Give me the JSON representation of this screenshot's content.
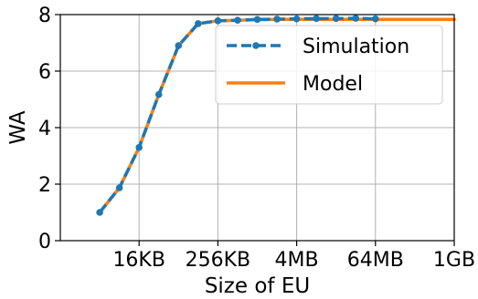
{
  "chart_data": {
    "type": "line",
    "title": "",
    "xlabel": "Size of EU",
    "ylabel": "WA",
    "x_scale": "log2",
    "x_ticks": [
      {
        "value": 16384,
        "label": "16KB"
      },
      {
        "value": 262144,
        "label": "256KB"
      },
      {
        "value": 4194304,
        "label": "4MB"
      },
      {
        "value": 67108864,
        "label": "64MB"
      },
      {
        "value": 1073741824,
        "label": "1GB"
      }
    ],
    "xlim": [
      1024,
      1073741824
    ],
    "ylim": [
      0,
      8
    ],
    "y_ticks": [
      0,
      2,
      4,
      6,
      8
    ],
    "grid": true,
    "legend_position": "top-right",
    "series": [
      {
        "name": "Simulation",
        "style": "dashed-with-markers",
        "color": "#1f77b4",
        "x": [
          4096,
          8192,
          16384,
          32768,
          65536,
          131072,
          262144,
          524288,
          1048576,
          2097152,
          4194304,
          8388608,
          16777216,
          33554432,
          67108864
        ],
        "y": [
          1.0,
          1.87,
          3.3,
          5.17,
          6.9,
          7.68,
          7.78,
          7.8,
          7.83,
          7.84,
          7.85,
          7.86,
          7.86,
          7.87,
          7.85
        ]
      },
      {
        "name": "Model",
        "style": "solid",
        "color": "#ff7f0e",
        "x": [
          4096,
          8192,
          16384,
          32768,
          65536,
          131072,
          262144,
          524288,
          1048576,
          2097152,
          4194304,
          1073741824
        ],
        "y": [
          1.0,
          1.87,
          3.3,
          5.17,
          6.9,
          7.68,
          7.78,
          7.8,
          7.82,
          7.83,
          7.83,
          7.83
        ]
      }
    ]
  }
}
